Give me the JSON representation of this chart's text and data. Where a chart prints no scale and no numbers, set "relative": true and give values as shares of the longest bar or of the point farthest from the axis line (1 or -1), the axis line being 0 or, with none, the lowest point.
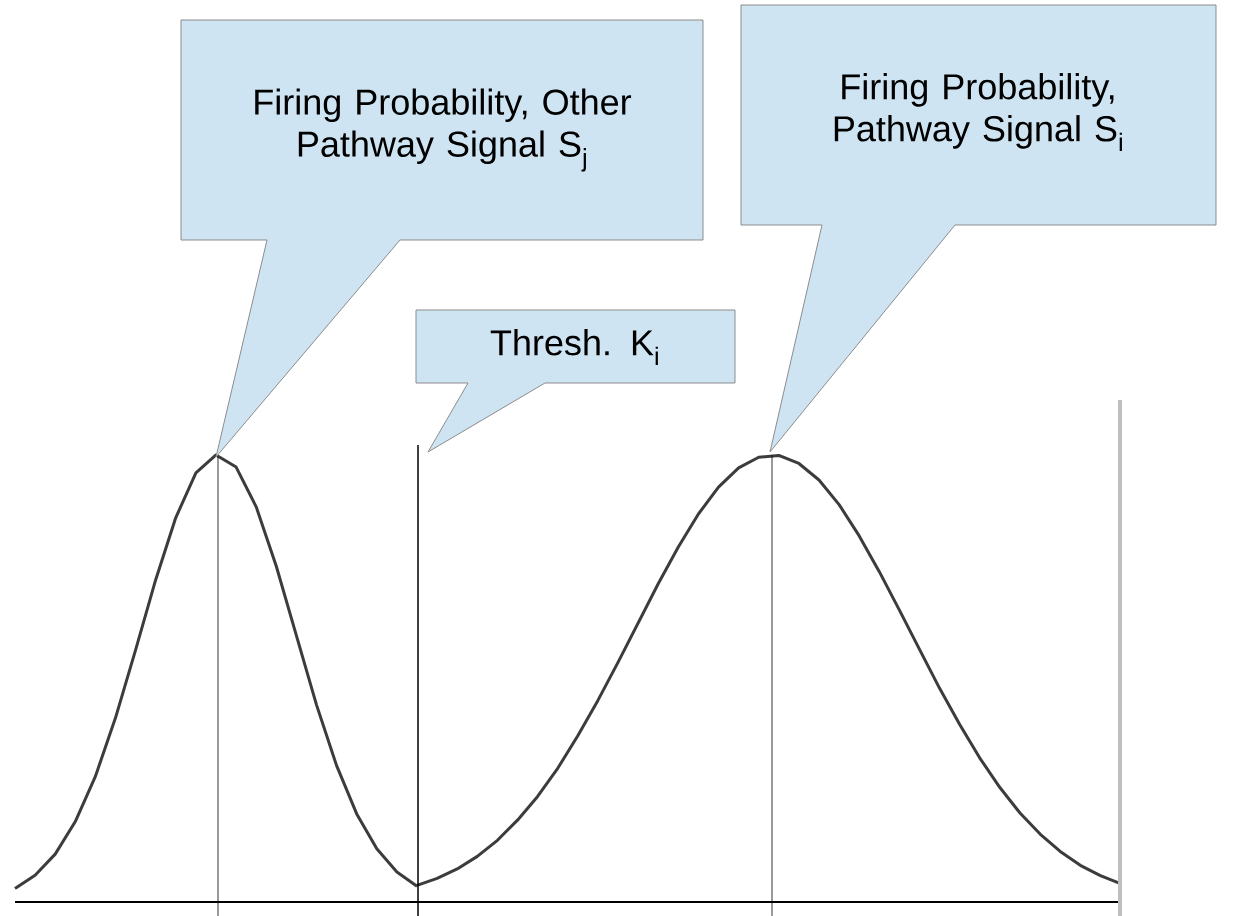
{
  "chart_data": {
    "type": "line",
    "relative": true,
    "categories": [
      null,
      null,
      null,
      null,
      null,
      null,
      null,
      null,
      null,
      null,
      null,
      null,
      null,
      null,
      null,
      null,
      null,
      null,
      null,
      null,
      null,
      null,
      null,
      null,
      null,
      null,
      null,
      null,
      null,
      null,
      null,
      null,
      null,
      null,
      null,
      null,
      null,
      null,
      null,
      null,
      null,
      null,
      null,
      null,
      null,
      null,
      null,
      null,
      null,
      null,
      null,
      null,
      null,
      null,
      null,
      null
    ],
    "series": [
      {
        "color": "#3c3c3c",
        "values": [
          0.03,
          0.06,
          0.107,
          0.18,
          0.281,
          0.412,
          0.564,
          0.721,
          0.86,
          0.96,
          1.0,
          0.973,
          0.884,
          0.751,
          0.596,
          0.441,
          0.305,
          0.197,
          0.119,
          0.067,
          0.035,
          null,
          null,
          null,
          null,
          null,
          null,
          null,
          null,
          null,
          null,
          null,
          null,
          null,
          null,
          null,
          null,
          null,
          null,
          null,
          null,
          null,
          null,
          null,
          null,
          null,
          null,
          null,
          null,
          null,
          null,
          null,
          null,
          null,
          null,
          null
        ]
      },
      {
        "color": "#3c3c3c",
        "values": [
          null,
          null,
          null,
          null,
          null,
          null,
          null,
          null,
          null,
          null,
          null,
          null,
          null,
          null,
          null,
          null,
          null,
          null,
          null,
          null,
          0.037,
          0.053,
          0.074,
          0.102,
          0.138,
          0.183,
          0.236,
          0.299,
          0.372,
          0.451,
          0.536,
          0.624,
          0.712,
          0.794,
          0.868,
          0.928,
          0.971,
          0.995,
          0.999,
          0.981,
          0.944,
          0.889,
          0.819,
          0.739,
          0.653,
          0.565,
          0.478,
          0.397,
          0.322,
          0.256,
          0.199,
          0.152,
          0.113,
          0.082,
          0.059,
          0.041
        ]
      }
    ],
    "annotations": [
      "Firing Probability, Other Pathway Signal S$_{j}$",
      "Firing Probability, Pathway Signal S$_{i}$",
      "Thresh. K$_{i}$"
    ],
    "marker": "none",
    "line_style": "solid"
  }
}
